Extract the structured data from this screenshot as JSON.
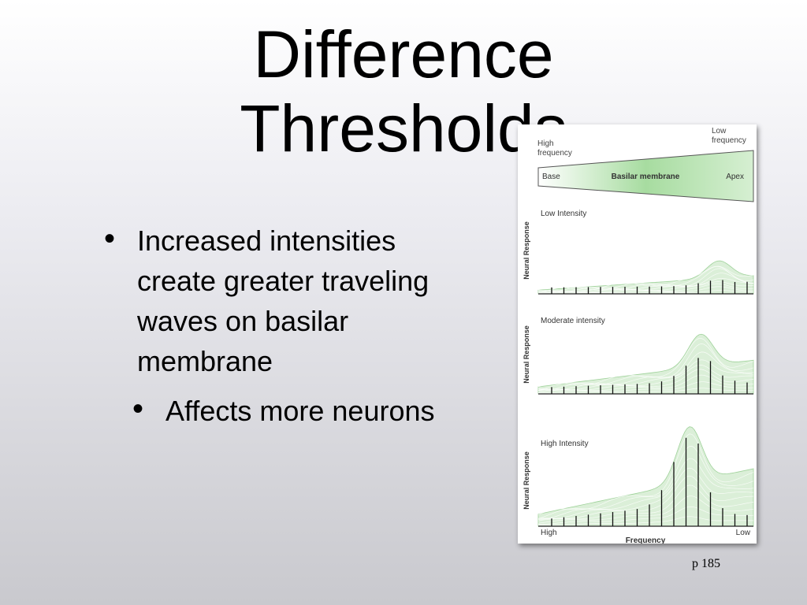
{
  "slide": {
    "title_line1": "Difference",
    "title_line2": "Thresholds",
    "bullet_1": "Increased intensities create greater traveling waves on basilar membrane",
    "bullet_2": "Affects more neurons",
    "page_ref": "p 185"
  },
  "figure": {
    "membrane": {
      "high_frequency_label": "High frequency",
      "low_frequency_label": "Low frequency",
      "base_label": "Base",
      "name_label": "Basilar membrane",
      "apex_label": "Apex"
    },
    "panels": [
      {
        "label": "Low Intensity",
        "y_label": "Neural Response",
        "response_scale": 0.28
      },
      {
        "label": "Moderate intensity",
        "y_label": "Neural Response",
        "response_scale": 0.6
      },
      {
        "label": "High Intensity",
        "y_label": "Neural Response",
        "response_scale": 1.0
      }
    ],
    "x_axis": {
      "left_label": "High",
      "title": "Frequency",
      "right_label": "Low"
    },
    "colors": {
      "wave_fill": "#cfeacb",
      "wave_line": "#9fd29a",
      "membrane_green": "#a7dca0"
    }
  }
}
